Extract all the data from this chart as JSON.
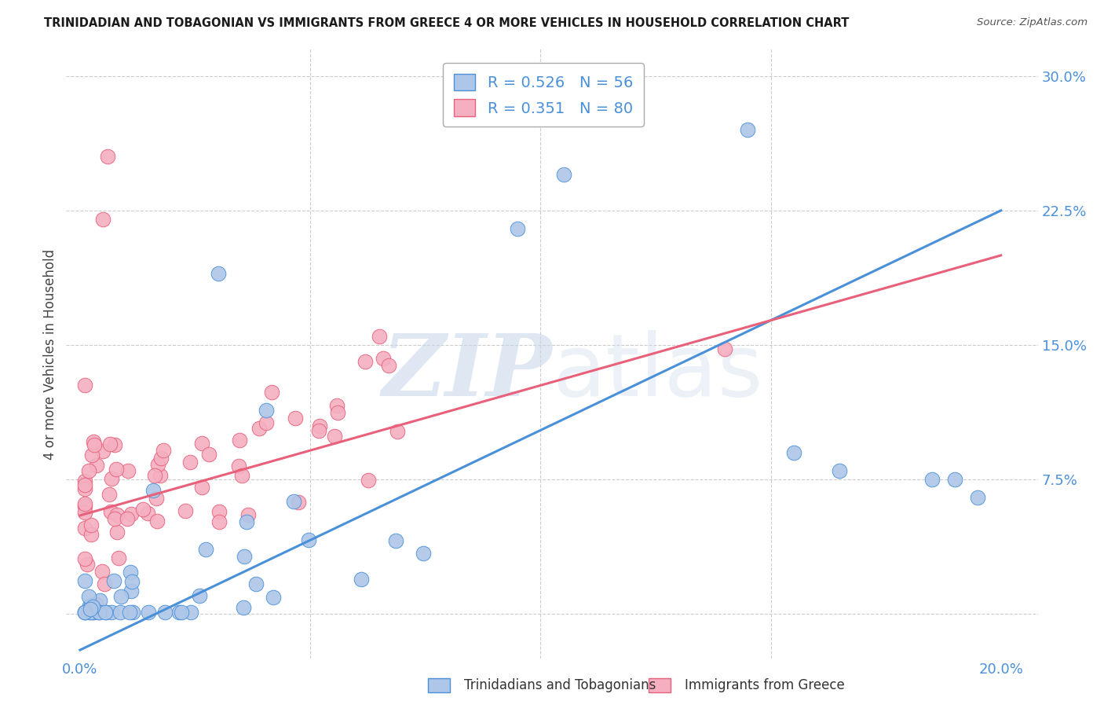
{
  "title": "TRINIDADIAN AND TOBAGONIAN VS IMMIGRANTS FROM GREECE 4 OR MORE VEHICLES IN HOUSEHOLD CORRELATION CHART",
  "source": "Source: ZipAtlas.com",
  "xlabel_ticks": [
    "0.0%",
    "",
    "",
    "",
    "20.0%"
  ],
  "xlabel_tick_vals": [
    0.0,
    0.05,
    0.1,
    0.15,
    0.2
  ],
  "ylabel_ticks": [
    "",
    "7.5%",
    "15.0%",
    "22.5%",
    "30.0%"
  ],
  "ylabel_tick_vals": [
    0.0,
    0.075,
    0.15,
    0.225,
    0.3
  ],
  "ylabel": "4 or more Vehicles in Household",
  "legend_label1": "Trinidadians and Tobagonians",
  "legend_label2": "Immigrants from Greece",
  "R1": 0.526,
  "N1": 56,
  "R2": 0.351,
  "N2": 80,
  "color1": "#aec6e8",
  "color2": "#f4afc0",
  "line_color1": "#4a90d9",
  "line_color2": "#e8607a",
  "watermark_color": "#c8d8ea",
  "line1_x0": 0.0,
  "line1_y0": -0.02,
  "line1_x1": 0.2,
  "line1_y1": 0.225,
  "line2_x0": 0.0,
  "line2_y0": 0.055,
  "line2_x1": 0.2,
  "line2_y1": 0.2,
  "xlim": [
    -0.003,
    0.208
  ],
  "ylim": [
    -0.025,
    0.315
  ]
}
